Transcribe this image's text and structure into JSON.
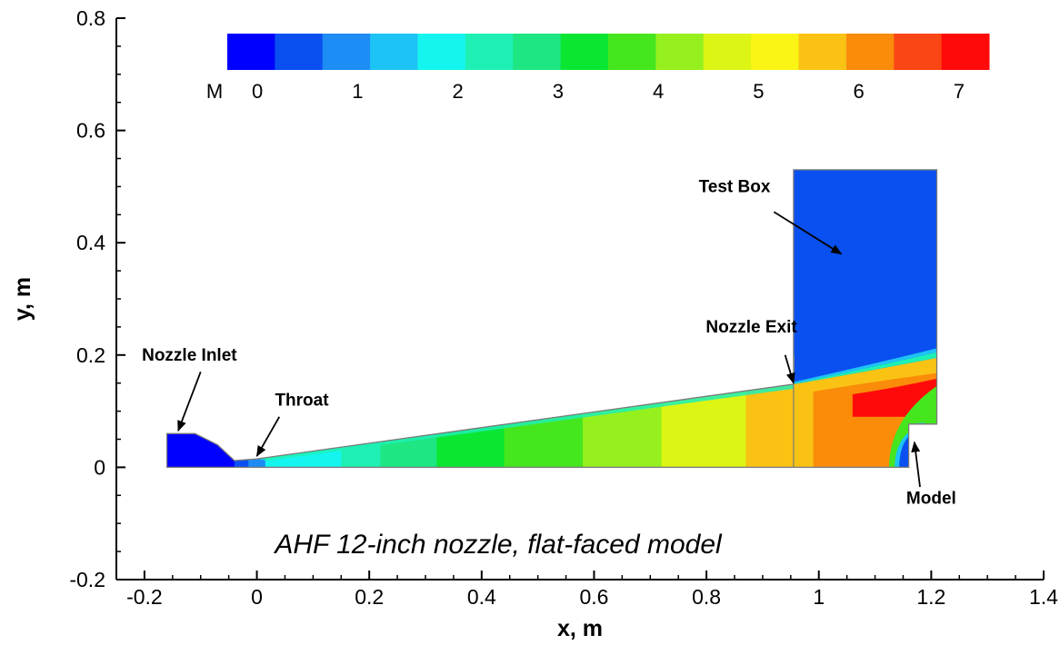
{
  "chart_data": {
    "type": "heatmap",
    "title": "",
    "caption": "AHF 12-inch nozzle, flat-faced model",
    "xlabel": "x, m",
    "ylabel": "y, m",
    "xlim": [
      -0.25,
      1.4
    ],
    "ylim": [
      -0.2,
      0.8
    ],
    "x_ticks": [
      -0.2,
      0,
      0.2,
      0.4,
      0.6,
      0.8,
      1,
      1.2,
      1.4
    ],
    "y_ticks": [
      -0.2,
      0,
      0.2,
      0.4,
      0.6,
      0.8
    ],
    "x_tick_labels": [
      "-0.2",
      "0",
      "0.2",
      "0.4",
      "0.6",
      "0.8",
      "1",
      "1.2",
      "1.4"
    ],
    "y_tick_labels": [
      "-0.2",
      "0",
      "0.2",
      "0.4",
      "0.6",
      "0.8"
    ],
    "colorbar": {
      "variable": "M",
      "range": [
        -0.3,
        7.3
      ],
      "ticks": [
        0,
        1,
        2,
        3,
        4,
        5,
        6,
        7
      ],
      "tick_labels": [
        "0",
        "1",
        "2",
        "3",
        "4",
        "5",
        "6",
        "7"
      ],
      "colors": [
        "#0000ff",
        "#0a50f0",
        "#1e8cf5",
        "#1ec3f5",
        "#14f5f0",
        "#1ef0b4",
        "#1ee682",
        "#0ae632",
        "#46e61e",
        "#96f01e",
        "#dcf514",
        "#faf514",
        "#fac314",
        "#fa8c0a",
        "#fa4614",
        "#ff0a0a"
      ]
    },
    "domain": {
      "nozzle_outline": [
        [
          -0.16,
          0
        ],
        [
          -0.16,
          0.06
        ],
        [
          -0.11,
          0.06
        ],
        [
          -0.07,
          0.04
        ],
        [
          -0.04,
          0.012
        ],
        [
          0.0,
          0.015
        ],
        [
          0.955,
          0.148
        ],
        [
          0.955,
          0.53
        ],
        [
          1.21,
          0.53
        ],
        [
          1.21,
          0.077
        ],
        [
          1.16,
          0.077
        ],
        [
          1.16,
          0
        ],
        [
          -0.16,
          0
        ]
      ],
      "test_box": {
        "x": [
          0.955,
          1.21
        ],
        "y": [
          0.0,
          0.53
        ]
      },
      "model": {
        "x_face": 1.16,
        "y_top": 0.077
      }
    },
    "mach_bands": [
      {
        "x": [
          -0.16,
          -0.04
        ],
        "mach": 0.1
      },
      {
        "x": [
          -0.04,
          -0.015
        ],
        "mach": 0.6
      },
      {
        "x": [
          -0.015,
          0.015
        ],
        "mach": 1.0
      },
      {
        "x": [
          0.015,
          0.07
        ],
        "mach": 1.6
      },
      {
        "x": [
          0.07,
          0.15
        ],
        "mach": 2.0
      },
      {
        "x": [
          0.15,
          0.22
        ],
        "mach": 2.5
      },
      {
        "x": [
          0.22,
          0.32
        ],
        "mach": 3.0
      },
      {
        "x": [
          0.32,
          0.44
        ],
        "mach": 3.4
      },
      {
        "x": [
          0.44,
          0.58
        ],
        "mach": 3.8
      },
      {
        "x": [
          0.58,
          0.72
        ],
        "mach": 4.3
      },
      {
        "x": [
          0.72,
          0.87
        ],
        "mach": 4.8
      },
      {
        "x": [
          0.87,
          0.955
        ],
        "mach": 5.4
      }
    ],
    "annotations": [
      {
        "text": "Nozzle Inlet",
        "x": -0.12,
        "y": 0.19,
        "arrow_to": [
          -0.14,
          0.065
        ]
      },
      {
        "text": "Throat",
        "x": 0.08,
        "y": 0.11,
        "arrow_to": [
          0.0,
          0.02
        ]
      },
      {
        "text": "Nozzle Exit",
        "x": 0.88,
        "y": 0.24,
        "arrow_to": [
          0.955,
          0.15
        ]
      },
      {
        "text": "Test Box",
        "x": 0.85,
        "y": 0.49,
        "arrow_to": [
          1.04,
          0.38
        ]
      },
      {
        "text": "Model",
        "x": 1.2,
        "y": -0.065,
        "arrow_to": [
          1.17,
          0.045
        ]
      }
    ]
  }
}
